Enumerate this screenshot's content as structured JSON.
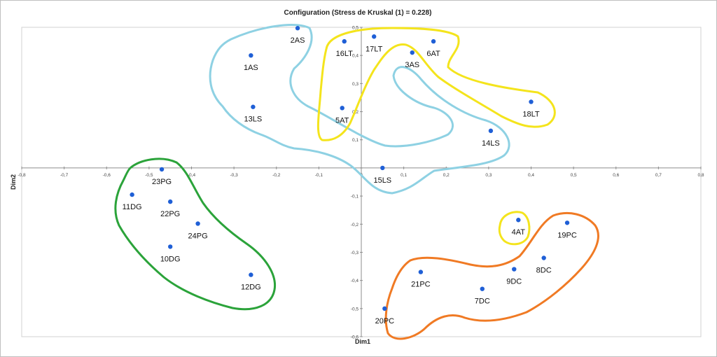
{
  "chart_data": {
    "type": "scatter",
    "title": "Configuration (Stress de Kruskal (1) = 0.228)",
    "xlabel": "Dim1",
    "ylabel": "Dim2",
    "xlim": [
      -0.8,
      0.8
    ],
    "ylim": [
      -0.6,
      0.5
    ],
    "x_ticks": [
      "-0,8",
      "-0,7",
      "-0,6",
      "-0,5",
      "-0,4",
      "-0,3",
      "-0,2",
      "-0,1",
      "0",
      "0,1",
      "0,2",
      "0,3",
      "0,4",
      "0,5",
      "0,6",
      "0,7",
      "0,8"
    ],
    "y_ticks": [
      "0,5",
      "0,4",
      "0,3",
      "0,2",
      "0,1",
      "0",
      "-0,1",
      "-0,2",
      "-0,3",
      "-0,4",
      "-0,5",
      "-0,6"
    ],
    "marker_color": "#1f5fd6",
    "grid": false,
    "points": [
      {
        "label": "1AS",
        "x": -0.26,
        "y": 0.4
      },
      {
        "label": "2AS",
        "x": -0.15,
        "y": 0.497
      },
      {
        "label": "3AS",
        "x": 0.12,
        "y": 0.41
      },
      {
        "label": "13LS",
        "x": -0.255,
        "y": 0.217
      },
      {
        "label": "5AT",
        "x": -0.045,
        "y": 0.213
      },
      {
        "label": "16LT",
        "x": -0.04,
        "y": 0.45
      },
      {
        "label": "17LT",
        "x": 0.03,
        "y": 0.467
      },
      {
        "label": "6AT",
        "x": 0.17,
        "y": 0.45
      },
      {
        "label": "18LT",
        "x": 0.4,
        "y": 0.235
      },
      {
        "label": "14LS",
        "x": 0.305,
        "y": 0.132
      },
      {
        "label": "15LS",
        "x": 0.05,
        "y": 0.0
      },
      {
        "label": "23PG",
        "x": -0.47,
        "y": -0.005
      },
      {
        "label": "11DG",
        "x": -0.54,
        "y": -0.095
      },
      {
        "label": "22PG",
        "x": -0.45,
        "y": -0.12
      },
      {
        "label": "24PG",
        "x": -0.385,
        "y": -0.198
      },
      {
        "label": "10DG",
        "x": -0.45,
        "y": -0.28
      },
      {
        "label": "12DG",
        "x": -0.26,
        "y": -0.38
      },
      {
        "label": "4AT",
        "x": 0.37,
        "y": -0.185
      },
      {
        "label": "19PC",
        "x": 0.485,
        "y": -0.195
      },
      {
        "label": "8DC",
        "x": 0.43,
        "y": -0.32
      },
      {
        "label": "9DC",
        "x": 0.36,
        "y": -0.36
      },
      {
        "label": "21PC",
        "x": 0.14,
        "y": -0.37
      },
      {
        "label": "7DC",
        "x": 0.285,
        "y": -0.43
      },
      {
        "label": "20PC",
        "x": 0.055,
        "y": -0.5
      }
    ],
    "group_colors": {
      "light_blue": "#8ed1e3",
      "yellow": "#f4e41c",
      "green": "#2ba33a",
      "orange": "#f07a24"
    }
  }
}
